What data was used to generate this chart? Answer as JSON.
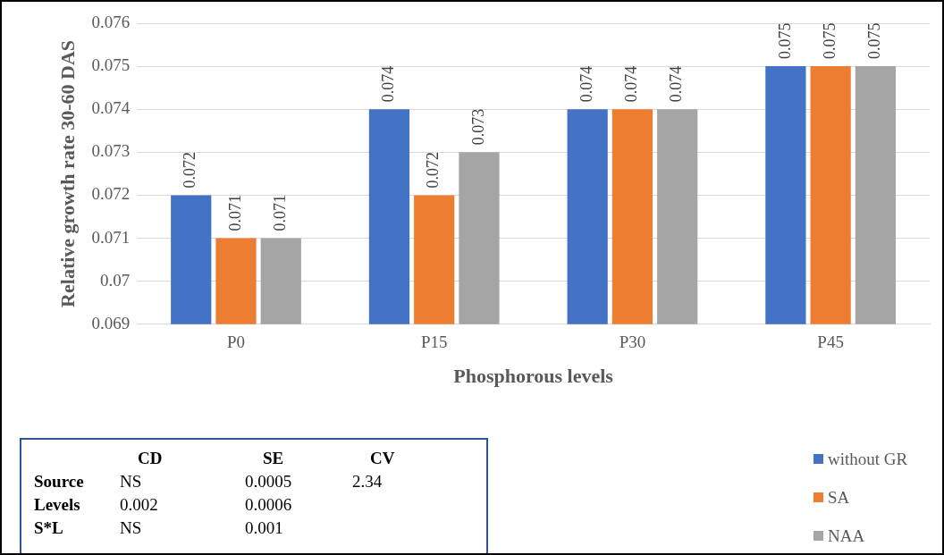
{
  "chart_data": {
    "type": "bar",
    "xlabel": "Phosphorous levels",
    "ylabel": "Relative growth rate 30-60 DAS",
    "categories": [
      "P0",
      "P15",
      "P30",
      "P45"
    ],
    "series": [
      {
        "name": "without GR",
        "color": "#4472c4",
        "values": [
          0.072,
          0.074,
          0.074,
          0.075
        ]
      },
      {
        "name": "SA",
        "color": "#ed7d31",
        "values": [
          0.071,
          0.072,
          0.074,
          0.075
        ]
      },
      {
        "name": "NAA",
        "color": "#a5a5a5",
        "values": [
          0.071,
          0.073,
          0.074,
          0.075
        ]
      }
    ],
    "ylim": [
      0.069,
      0.076
    ],
    "yticks": [
      0.069,
      0.07,
      0.071,
      0.072,
      0.073,
      0.074,
      0.075,
      0.076
    ],
    "grid": "y",
    "legend": "bottom right",
    "data_labels": true,
    "annotations": [
      "CD",
      "SE",
      "CV",
      "Source",
      "NS",
      "0.0005",
      "2.34",
      "Levels",
      "0.002",
      "0.0006",
      "S*L",
      "NS",
      "0.001"
    ]
  }
}
